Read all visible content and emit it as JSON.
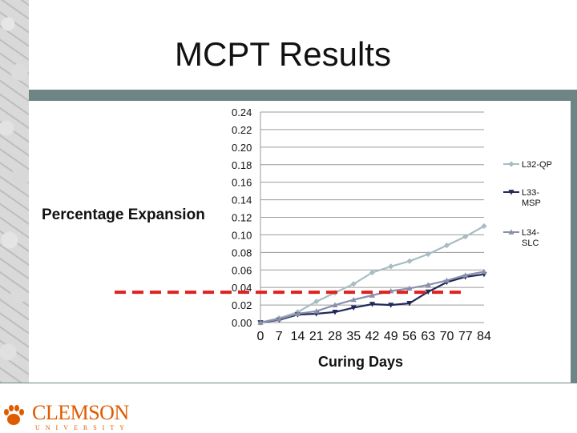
{
  "slide": {
    "title": "MCPT Results",
    "logo_word": "CLEMSON",
    "logo_sub": "UNIVERSITY"
  },
  "colors": {
    "frame": "#6d8585",
    "brand_orange": "#e05a00",
    "threshold": "#e02020"
  },
  "chart_data": {
    "type": "line",
    "title": "",
    "xlabel": "Curing Days",
    "ylabel": "Percentage Expansion",
    "categories": [
      "0",
      "7",
      "14",
      "21",
      "28",
      "35",
      "42",
      "49",
      "56",
      "63",
      "70",
      "77",
      "84"
    ],
    "x": [
      0,
      7,
      14,
      21,
      28,
      35,
      42,
      49,
      56,
      63,
      70,
      77,
      84
    ],
    "ylim": [
      0,
      0.24
    ],
    "yticks": [
      "0.00",
      "0.02",
      "0.04",
      "0.06",
      "0.08",
      "0.10",
      "0.12",
      "0.14",
      "0.16",
      "0.18",
      "0.20",
      "0.22",
      "0.24"
    ],
    "grid": true,
    "legend_position": "right",
    "threshold_line": {
      "y": 0.04,
      "style": "dashed",
      "color": "#e02020"
    },
    "series": [
      {
        "name": "L32-QP",
        "label_lines": [
          "L32-QP"
        ],
        "color": "#a9bcc2",
        "marker": "diamond",
        "values": [
          0.0,
          0.005,
          0.012,
          0.024,
          0.034,
          0.044,
          0.057,
          0.064,
          0.07,
          0.078,
          0.088,
          0.098,
          0.11
        ]
      },
      {
        "name": "L33-MSP",
        "label_lines": [
          "L33-",
          "MSP"
        ],
        "color": "#202a5a",
        "marker": "triangle-down",
        "values": [
          0.0,
          0.003,
          0.009,
          0.01,
          0.012,
          0.017,
          0.021,
          0.02,
          0.022,
          0.035,
          0.046,
          0.052,
          0.055
        ]
      },
      {
        "name": "L34-SLC",
        "label_lines": [
          "L34-",
          "SLC"
        ],
        "color": "#8a90ac",
        "marker": "triangle-up",
        "values": [
          0.0,
          0.004,
          0.01,
          0.013,
          0.02,
          0.026,
          0.031,
          0.036,
          0.039,
          0.043,
          0.048,
          0.054,
          0.058
        ]
      }
    ]
  }
}
